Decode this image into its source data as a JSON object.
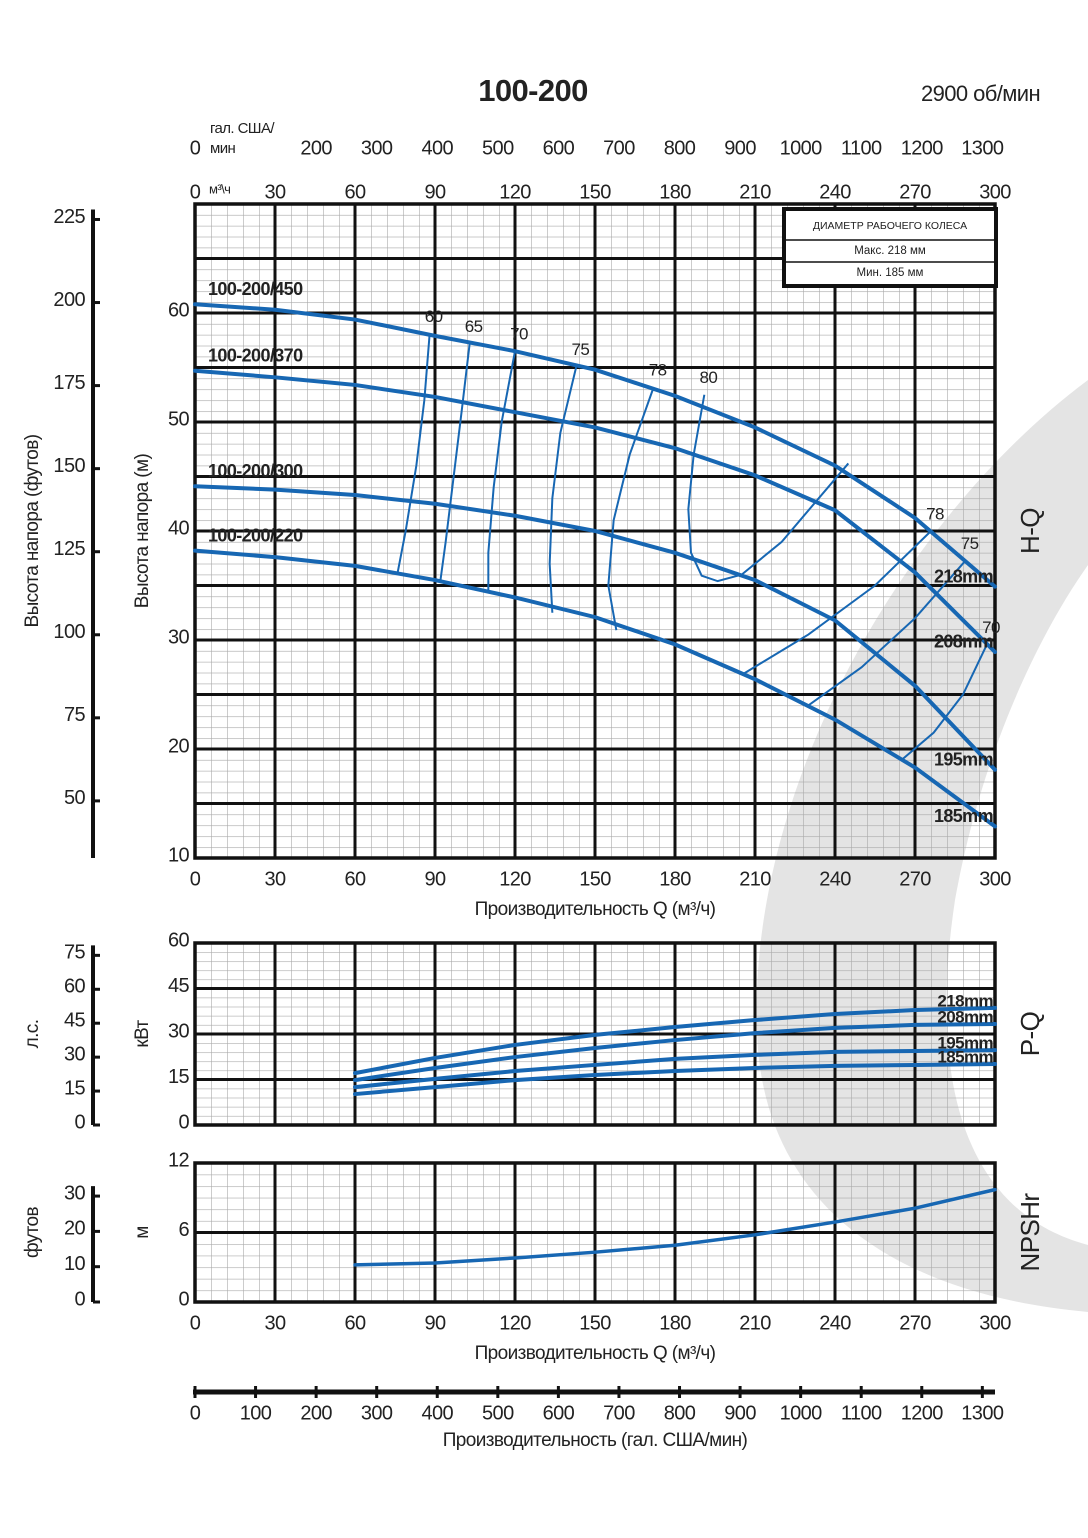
{
  "title": "100-200",
  "speed": "2900 об/мин",
  "chart_data": [
    {
      "type": "line",
      "xlabel": "Производительность Q (м³/ч)",
      "x_unit": "м³\\ч",
      "x2label": [
        "гал. США/",
        "мин"
      ],
      "ylabel": "Высота напора (м)",
      "y2label": "Высота напора (футов)",
      "side_label": "H-Q",
      "xlim": [
        0,
        300
      ],
      "xticks": [
        0,
        30,
        60,
        90,
        120,
        150,
        180,
        210,
        240,
        270,
        300
      ],
      "xtick_labels": true,
      "x2lim": [
        0,
        1320.9
      ],
      "x2ticks": [
        0,
        200,
        300,
        400,
        500,
        600,
        700,
        800,
        900,
        1000,
        1100,
        1200,
        1300
      ],
      "ylim": [
        10,
        70
      ],
      "yticks": [
        10,
        20,
        30,
        40,
        50,
        60
      ],
      "y2lim": [
        32.81,
        229.66
      ],
      "y2ticks": [
        50,
        75,
        100,
        125,
        150,
        175,
        200,
        225
      ],
      "grid": true,
      "diameter_box": {
        "title": "ДИАМЕТР РАБОЧЕГО КОЛЕСА",
        "max": "Макс. 218 мм",
        "min": "Мин. 185 мм"
      },
      "x": [
        0,
        30,
        60,
        90,
        120,
        150,
        180,
        210,
        240,
        270,
        300
      ],
      "series": [
        {
          "name": "100-200/450",
          "diameter": "218mm",
          "color": "#1767b3",
          "values": [
            60.8,
            60.3,
            59.4,
            57.9,
            56.5,
            54.8,
            52.4,
            49.5,
            46.0,
            41.2,
            34.9
          ]
        },
        {
          "name": "100-200/370",
          "diameter": "208mm",
          "color": "#1767b3",
          "values": [
            54.7,
            54.1,
            53.4,
            52.3,
            50.9,
            49.5,
            47.6,
            45.1,
            41.9,
            36.2,
            28.9
          ]
        },
        {
          "name": "100-200/300",
          "diameter": "195mm",
          "color": "#1767b3",
          "values": [
            44.1,
            43.8,
            43.3,
            42.5,
            41.4,
            40.0,
            38.0,
            35.5,
            31.8,
            25.8,
            18.1
          ]
        },
        {
          "name": "100-200/220",
          "diameter": "185mm",
          "color": "#1767b3",
          "values": [
            38.2,
            37.6,
            36.8,
            35.5,
            33.9,
            32.1,
            29.6,
            26.4,
            22.7,
            18.3,
            12.9
          ]
        }
      ],
      "efficiency": [
        {
          "name": "60",
          "x": [
            88,
            86,
            83,
            79,
            76
          ],
          "y": [
            58.1,
            52,
            46,
            40,
            36.2
          ]
        },
        {
          "name": "65",
          "x": [
            103,
            100,
            97,
            94,
            92
          ],
          "y": [
            57.2,
            51,
            45,
            39,
            35.4
          ]
        },
        {
          "name": "70",
          "x": [
            120,
            115,
            112,
            110,
            110
          ],
          "y": [
            56.5,
            50,
            44,
            38,
            34.5
          ]
        },
        {
          "name": "75",
          "x": [
            143,
            137,
            134,
            133,
            134
          ],
          "y": [
            55.1,
            49,
            43,
            37,
            32.5
          ]
        },
        {
          "name": "78",
          "x": [
            172,
            163,
            157,
            155,
            158
          ],
          "y": [
            53.2,
            47,
            41,
            35,
            30.9
          ]
        },
        {
          "name": "80",
          "x": [
            191,
            187,
            185,
            186,
            190,
            196,
            205,
            220,
            245
          ],
          "y": [
            52.5,
            47,
            42,
            38,
            35.9,
            35.4,
            36,
            39,
            46.2
          ]
        },
        {
          "name": "78",
          "x": [
            276,
            255,
            230,
            205
          ],
          "y": [
            40,
            35,
            30.5,
            26.8
          ]
        },
        {
          "name": "75",
          "x": [
            289,
            270,
            250,
            230
          ],
          "y": [
            37.3,
            32,
            27.5,
            24
          ]
        },
        {
          "name": "70",
          "x": [
            297,
            288,
            277,
            265
          ],
          "y": [
            29.6,
            25,
            21.5,
            19
          ]
        }
      ]
    },
    {
      "type": "line",
      "ylabel": "кВт",
      "y2label": "л.с.",
      "side_label": "P-Q",
      "xlim": [
        0,
        300
      ],
      "xticks": [
        0,
        30,
        60,
        90,
        120,
        150,
        180,
        210,
        240,
        270,
        300
      ],
      "xtick_labels": false,
      "ylim": [
        0,
        60
      ],
      "yticks": [
        0,
        15,
        30,
        45,
        60
      ],
      "y2lim": [
        0,
        80.46
      ],
      "y2ticks": [
        0,
        15,
        30,
        45,
        60,
        75
      ],
      "grid": true,
      "x": [
        60,
        90,
        120,
        150,
        180,
        210,
        240,
        270,
        300
      ],
      "series": [
        {
          "name": "218mm",
          "color": "#1767b3",
          "values": [
            17.1,
            22.1,
            26.4,
            29.7,
            32.3,
            34.6,
            36.6,
            37.9,
            38.6
          ]
        },
        {
          "name": "208mm",
          "color": "#1767b3",
          "values": [
            14.8,
            18.8,
            22.4,
            25.4,
            28.0,
            30.3,
            32.0,
            33.0,
            33.3
          ]
        },
        {
          "name": "195mm",
          "color": "#1767b3",
          "values": [
            12.5,
            15.2,
            17.8,
            19.8,
            21.8,
            23.1,
            24.1,
            24.4,
            24.7
          ]
        },
        {
          "name": "185mm",
          "color": "#1767b3",
          "values": [
            10.2,
            12.5,
            14.8,
            16.5,
            17.8,
            18.8,
            19.5,
            19.8,
            20.1
          ]
        }
      ]
    },
    {
      "type": "line",
      "xlabel": "Производительность Q (м³/ч)",
      "ylabel": "м",
      "y2label": "футов",
      "side_label": "NPSHr",
      "xlim": [
        0,
        300
      ],
      "xticks": [
        0,
        30,
        60,
        90,
        120,
        150,
        180,
        210,
        240,
        270,
        300
      ],
      "xtick_labels": true,
      "x2lim": [
        0,
        1320.9
      ],
      "x2ticks": [
        0,
        100,
        200,
        300,
        400,
        500,
        600,
        700,
        800,
        900,
        1000,
        1100,
        1200,
        1300
      ],
      "x2label": "Производительность (гал. США/мин)",
      "ylim": [
        0,
        12
      ],
      "yticks": [
        0,
        6,
        12
      ],
      "y2lim": [
        0,
        39.37
      ],
      "y2ticks": [
        0,
        10,
        20,
        30
      ],
      "grid": true,
      "x": [
        60,
        90,
        120,
        150,
        180,
        210,
        240,
        270,
        300
      ],
      "series": [
        {
          "name": "NPSHr",
          "color": "#1767b3",
          "values": [
            3.2,
            3.37,
            3.8,
            4.3,
            4.9,
            5.8,
            6.9,
            8.1,
            9.7
          ]
        }
      ]
    }
  ]
}
